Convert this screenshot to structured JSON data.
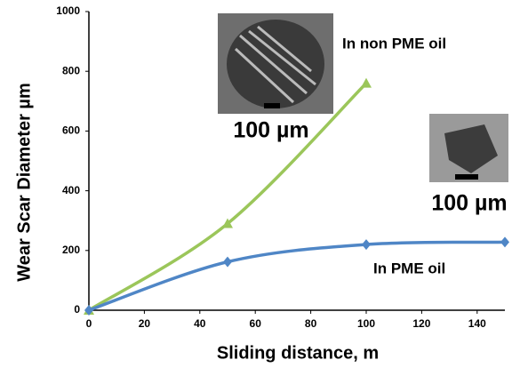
{
  "chart_data": {
    "type": "line",
    "x_label": "Sliding distance, m",
    "y_label": "Wear Scar Diameter µm",
    "x": [
      0,
      50,
      100,
      150
    ],
    "series": [
      {
        "name": "In non PME oil",
        "color": "#9bc65a",
        "marker": "triangle",
        "values": [
          0,
          290,
          760,
          null
        ]
      },
      {
        "name": "In PME oil",
        "color": "#4f86c6",
        "marker": "diamond",
        "values": [
          0,
          162,
          220,
          228
        ]
      }
    ],
    "xlim": [
      0,
      150
    ],
    "xticks": [
      0,
      20,
      40,
      60,
      80,
      100,
      120,
      140
    ],
    "ylim": [
      0,
      1000
    ],
    "yticks": [
      0,
      200,
      400,
      600,
      800,
      1000
    ],
    "annotations": [
      "100 µm",
      "100 µm"
    ]
  }
}
